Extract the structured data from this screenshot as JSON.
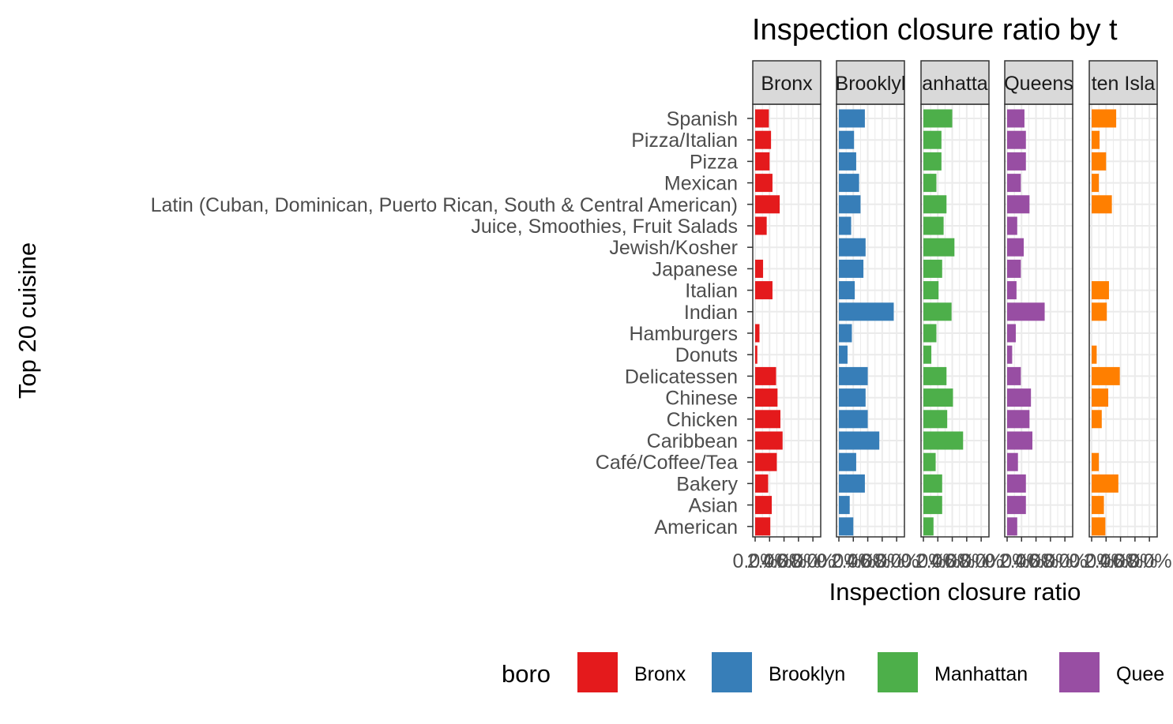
{
  "chart_data": {
    "type": "bar",
    "orientation": "horizontal",
    "title": "Inspection closure ratio by t",
    "xlabel": "Inspection closure ratio",
    "ylabel": "Top 20 cuisine",
    "facets": [
      "Bronx",
      "Brooklyl",
      "anhatta",
      "Queens",
      "ten Isla"
    ],
    "xlim": [
      0,
      0.0875
    ],
    "xticks": [
      0,
      0.02,
      0.04,
      0.06,
      0.08
    ],
    "xtick_labels": [
      "0.0%",
      "2.0%",
      "4.0%",
      "6.0%",
      "8.0%"
    ],
    "grid": true,
    "categories": [
      "Spanish",
      "Pizza/Italian",
      "Pizza",
      "Mexican",
      "Latin (Cuban, Dominican, Puerto Rican, South & Central American)",
      "Juice, Smoothies, Fruit Salads",
      "Jewish/Kosher",
      "Japanese",
      "Italian",
      "Indian",
      "Hamburgers",
      "Donuts",
      "Delicatessen",
      "Chinese",
      "Chicken",
      "Caribbean",
      "Café/Coffee/Tea",
      "Bakery",
      "Asian",
      "American"
    ],
    "series": [
      {
        "name": "Bronx",
        "color": "#E41A1C",
        "values": [
          0.019,
          0.022,
          0.02,
          0.024,
          0.034,
          0.016,
          0.0,
          0.011,
          0.024,
          0.0,
          0.006,
          0.003,
          0.029,
          0.031,
          0.035,
          0.038,
          0.03,
          0.018,
          0.023,
          0.021
        ]
      },
      {
        "name": "Brooklyn",
        "color": "#377EB8",
        "values": [
          0.036,
          0.021,
          0.024,
          0.028,
          0.03,
          0.017,
          0.037,
          0.034,
          0.022,
          0.076,
          0.018,
          0.012,
          0.04,
          0.037,
          0.04,
          0.056,
          0.024,
          0.036,
          0.015,
          0.02
        ]
      },
      {
        "name": "Manhattan",
        "color": "#4DAF4A",
        "values": [
          0.04,
          0.025,
          0.025,
          0.018,
          0.032,
          0.028,
          0.043,
          0.026,
          0.021,
          0.039,
          0.018,
          0.011,
          0.032,
          0.041,
          0.033,
          0.055,
          0.017,
          0.026,
          0.026,
          0.014
        ]
      },
      {
        "name": "Queens",
        "color": "#984EA3",
        "values": [
          0.024,
          0.026,
          0.026,
          0.019,
          0.031,
          0.014,
          0.023,
          0.019,
          0.013,
          0.052,
          0.012,
          0.007,
          0.019,
          0.033,
          0.031,
          0.035,
          0.015,
          0.026,
          0.026,
          0.014
        ]
      },
      {
        "name": "Staten Island",
        "color": "#FF7F00",
        "values": [
          0.034,
          0.011,
          0.02,
          0.01,
          0.028,
          0.0,
          0.0,
          0.0,
          0.024,
          0.021,
          0.0,
          0.007,
          0.039,
          0.023,
          0.014,
          0.0,
          0.01,
          0.037,
          0.017,
          0.019
        ]
      }
    ],
    "legend": {
      "title": "boro",
      "position": "bottom",
      "entries": [
        {
          "label": "Bronx",
          "color": "#E41A1C"
        },
        {
          "label": "Brooklyn",
          "color": "#377EB8"
        },
        {
          "label": "Manhattan",
          "color": "#4DAF4A"
        },
        {
          "label": "Quee",
          "color": "#984EA3"
        }
      ]
    }
  }
}
